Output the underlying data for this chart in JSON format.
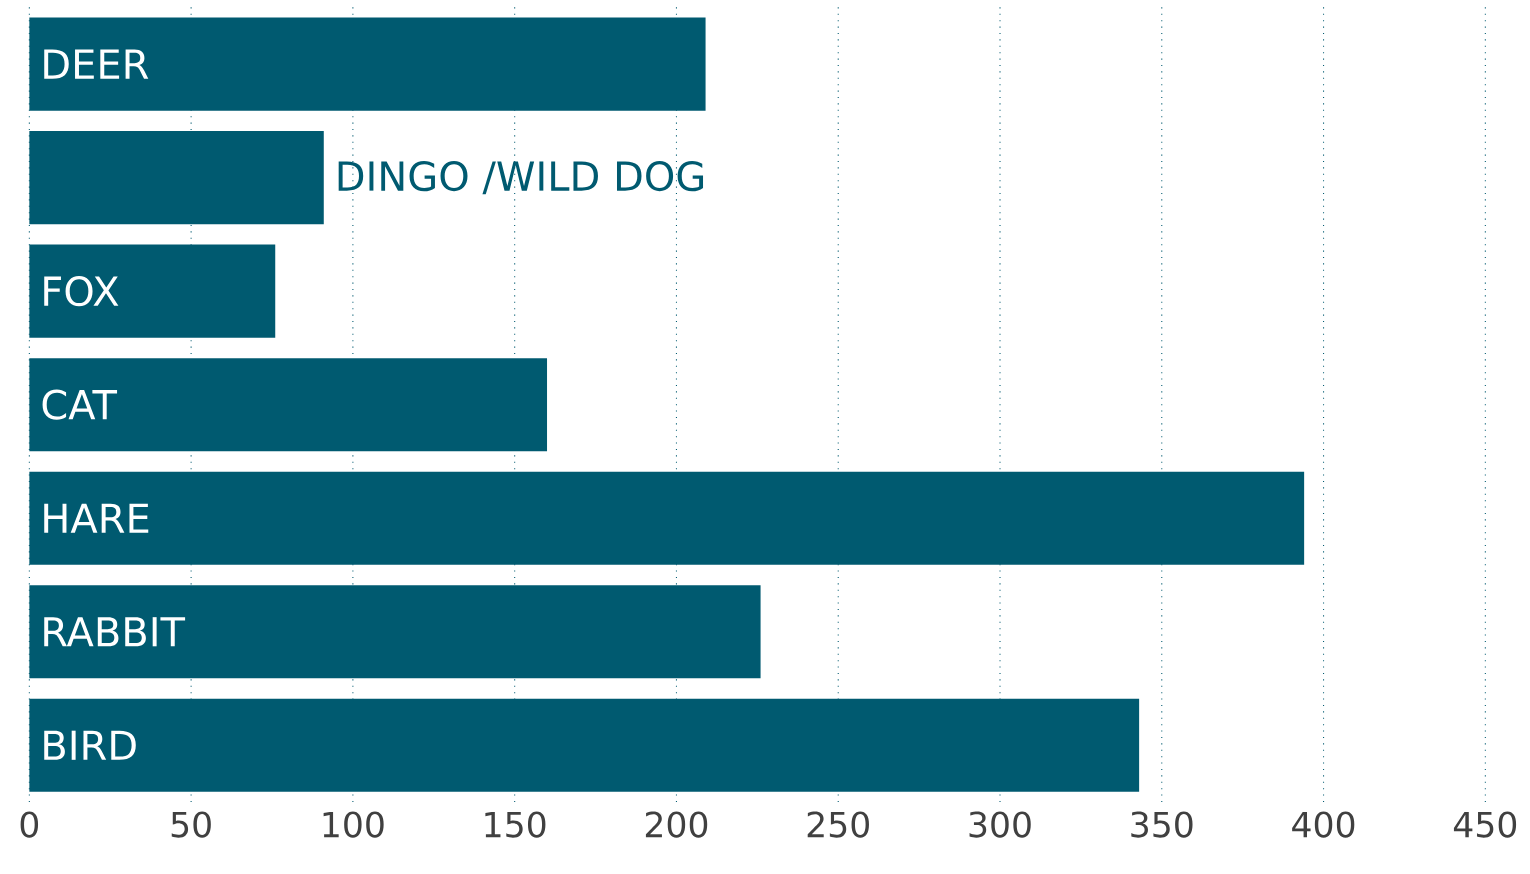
{
  "chart_data": {
    "type": "bar",
    "orientation": "horizontal",
    "categories": [
      "DEER",
      "DINGO /WILD DOG",
      "FOX",
      "CAT",
      "HARE",
      "RABBIT",
      "BIRD"
    ],
    "values": [
      209,
      91,
      76,
      160,
      394,
      226,
      343
    ],
    "color": "#005a70",
    "xlim": [
      0,
      450
    ],
    "xticks": [
      0,
      50,
      100,
      150,
      200,
      250,
      300,
      350,
      400,
      450
    ],
    "grid": "x"
  }
}
